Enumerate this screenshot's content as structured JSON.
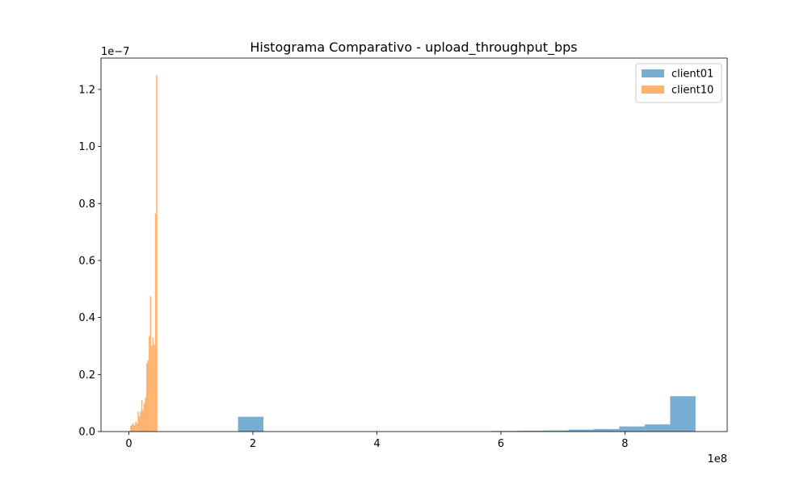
{
  "chart_data": {
    "type": "bar",
    "title": "Histograma Comparativo - upload_throughput_bps",
    "xlabel": "",
    "ylabel": "",
    "x_offset_label": "1e8",
    "y_offset_label": "1e−7",
    "xlim": [
      -0.45,
      9.65
    ],
    "ylim": [
      0,
      1.31
    ],
    "x_ticks": [
      {
        "v": 0,
        "label": "0"
      },
      {
        "v": 2,
        "label": "2"
      },
      {
        "v": 4,
        "label": "4"
      },
      {
        "v": 6,
        "label": "6"
      },
      {
        "v": 8,
        "label": "8"
      }
    ],
    "y_ticks": [
      {
        "v": 0,
        "label": "0.0"
      },
      {
        "v": 0.2,
        "label": "0.2"
      },
      {
        "v": 0.4,
        "label": "0.4"
      },
      {
        "v": 0.6,
        "label": "0.6"
      },
      {
        "v": 0.8,
        "label": "0.8"
      },
      {
        "v": 1.0,
        "label": "1.0"
      },
      {
        "v": 1.2,
        "label": "1.2"
      }
    ],
    "legend_position": "top-right",
    "series": [
      {
        "name": "client01",
        "color": "#1f77b4",
        "bins": [
          {
            "x0": 1.76,
            "x1": 2.17,
            "v": 0.052
          },
          {
            "x0": 5.86,
            "x1": 6.27,
            "v": 0.002
          },
          {
            "x0": 6.27,
            "x1": 6.68,
            "v": 0.003
          },
          {
            "x0": 6.68,
            "x1": 7.09,
            "v": 0.004
          },
          {
            "x0": 7.09,
            "x1": 7.5,
            "v": 0.007
          },
          {
            "x0": 7.5,
            "x1": 7.91,
            "v": 0.009
          },
          {
            "x0": 7.91,
            "x1": 8.32,
            "v": 0.018
          },
          {
            "x0": 8.32,
            "x1": 8.73,
            "v": 0.025
          },
          {
            "x0": 8.73,
            "x1": 9.14,
            "v": 0.124
          }
        ]
      },
      {
        "name": "client10",
        "color": "#ff7f0e",
        "bins": [
          {
            "x0": 0.02,
            "x1": 0.04,
            "v": 0.02
          },
          {
            "x0": 0.04,
            "x1": 0.06,
            "v": 0.025
          },
          {
            "x0": 0.06,
            "x1": 0.08,
            "v": 0.03
          },
          {
            "x0": 0.08,
            "x1": 0.1,
            "v": 0.022
          },
          {
            "x0": 0.1,
            "x1": 0.12,
            "v": 0.035
          },
          {
            "x0": 0.12,
            "x1": 0.14,
            "v": 0.03
          },
          {
            "x0": 0.14,
            "x1": 0.16,
            "v": 0.07
          },
          {
            "x0": 0.16,
            "x1": 0.18,
            "v": 0.055
          },
          {
            "x0": 0.18,
            "x1": 0.2,
            "v": 0.07
          },
          {
            "x0": 0.2,
            "x1": 0.22,
            "v": 0.11
          },
          {
            "x0": 0.22,
            "x1": 0.24,
            "v": 0.075
          },
          {
            "x0": 0.24,
            "x1": 0.26,
            "v": 0.1
          },
          {
            "x0": 0.26,
            "x1": 0.28,
            "v": 0.12
          },
          {
            "x0": 0.28,
            "x1": 0.3,
            "v": 0.24
          },
          {
            "x0": 0.3,
            "x1": 0.32,
            "v": 0.25
          },
          {
            "x0": 0.32,
            "x1": 0.34,
            "v": 0.335
          },
          {
            "x0": 0.34,
            "x1": 0.36,
            "v": 0.475
          },
          {
            "x0": 0.36,
            "x1": 0.38,
            "v": 0.3
          },
          {
            "x0": 0.38,
            "x1": 0.4,
            "v": 0.33
          },
          {
            "x0": 0.4,
            "x1": 0.42,
            "v": 0.305
          },
          {
            "x0": 0.42,
            "x1": 0.44,
            "v": 0.765
          },
          {
            "x0": 0.44,
            "x1": 0.46,
            "v": 1.25
          }
        ]
      }
    ]
  }
}
